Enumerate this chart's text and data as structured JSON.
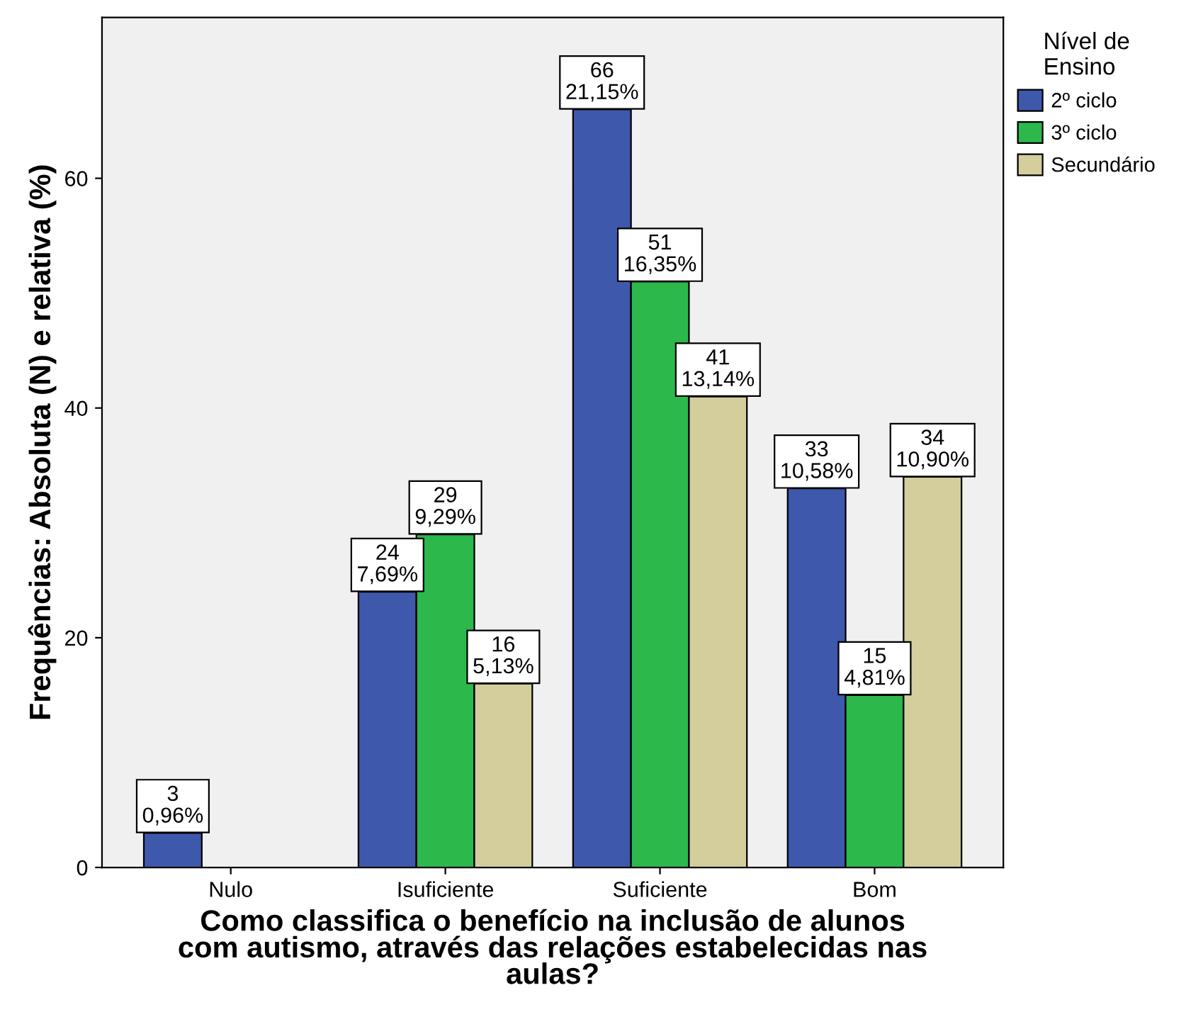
{
  "chart_data": {
    "type": "bar",
    "xlabel": "Como classifica o benefício na inclusão de alunos\ncom autismo, através das relações estabelecidas nas\naulas?",
    "ylabel": "Frequências: Absoluta (N) e relativa (%)",
    "legend_title": "Nível de\nEnsino",
    "categories": [
      "Nulo",
      "Isuficiente",
      "Suficiente",
      "Bom"
    ],
    "series": [
      {
        "name": "2º ciclo",
        "color": "#3e58ac",
        "values": [
          3,
          24,
          66,
          33
        ],
        "value_labels": [
          "3\n0,96%",
          "24\n7,69%",
          "66\n21,15%",
          "33\n10,58%"
        ]
      },
      {
        "name": "3º ciclo",
        "color": "#2db84c",
        "values": [
          null,
          29,
          51,
          15
        ],
        "value_labels": [
          null,
          "29\n9,29%",
          "51\n16,35%",
          "15\n4,81%"
        ]
      },
      {
        "name": "Secundário",
        "color": "#d3ce9c",
        "values": [
          null,
          16,
          41,
          34
        ],
        "value_labels": [
          null,
          "16\n5,13%",
          "41\n13,14%",
          "34\n10,90%"
        ]
      }
    ],
    "ylim": [
      0,
      74
    ],
    "yticks": [
      0,
      20,
      40,
      60
    ],
    "grid": false,
    "legend": "top right"
  }
}
